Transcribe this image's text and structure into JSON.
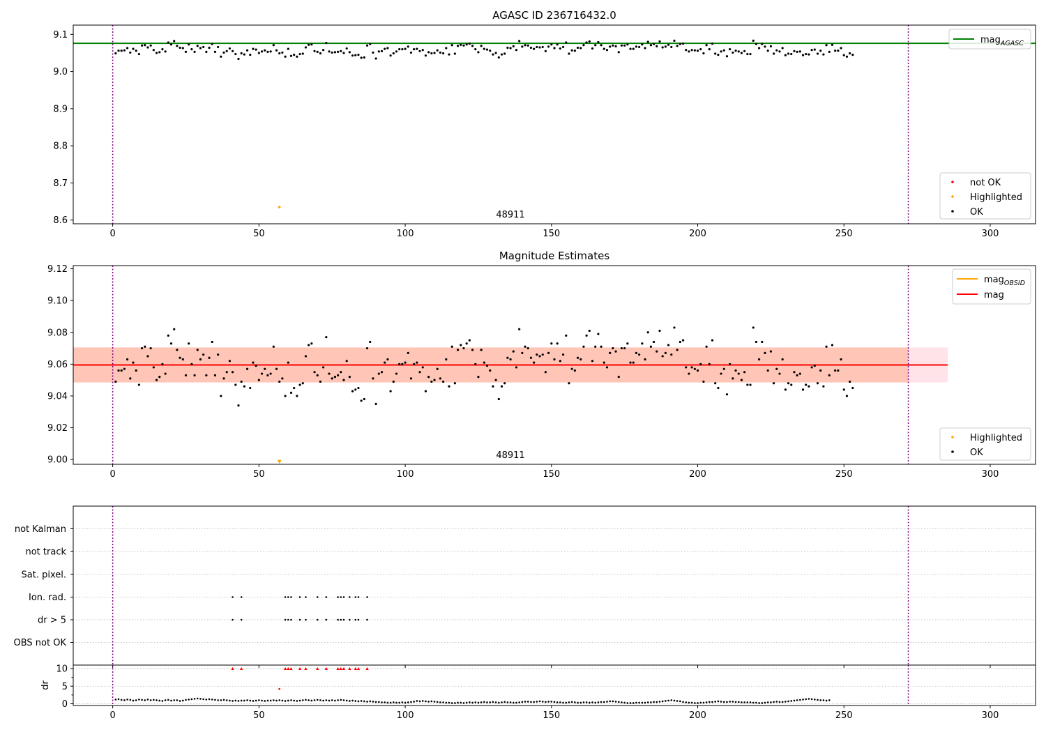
{
  "figure": {
    "vlines": [
      0,
      272
    ],
    "vline_color": "#800080",
    "colors": {
      "ok": "#000000",
      "highlighted": "#ffa500",
      "not_ok": "#ff0000",
      "agasc": "#008000",
      "mag": "#ff0000",
      "band_outer": "#ffc0cb",
      "band_inner": "#ffa07a"
    }
  },
  "chart_data": [
    {
      "id": "agasc-panel",
      "type": "scatter",
      "title": "AGASC ID 236716432.0",
      "xlim": [
        -13.5,
        315.5
      ],
      "ylim": [
        8.59,
        9.125
      ],
      "xticks": [
        "0",
        "50",
        "100",
        "150",
        "200",
        "250",
        "300"
      ],
      "yticks": [
        "8.6",
        "8.7",
        "8.8",
        "8.9",
        "9.0",
        "9.1"
      ],
      "hline": {
        "name": "mag_AGASC",
        "value": 9.076,
        "color": "#008000"
      },
      "annotation": {
        "text": "48911",
        "x": 136,
        "y": 8.608
      },
      "highlighted": [
        {
          "x": 57,
          "y": 8.635
        }
      ],
      "legend_lines": [
        {
          "label": "mag",
          "sub": "AGASC",
          "color": "#008000"
        }
      ],
      "legend_points": [
        {
          "label": "not OK",
          "color": "#ff0000"
        },
        {
          "label": "Highlighted",
          "color": "#ffa500"
        },
        {
          "label": "OK",
          "color": "#000000"
        }
      ],
      "ok_values": [
        9.049,
        9.056,
        9.056,
        9.057,
        9.063,
        9.051,
        9.061,
        9.056,
        9.047,
        9.07,
        9.071,
        9.065,
        9.07,
        9.058,
        9.05,
        9.052,
        9.06,
        9.054,
        9.078,
        9.073,
        9.082,
        9.069,
        9.064,
        9.063,
        9.053,
        9.073,
        9.06,
        9.053,
        9.069,
        9.063,
        9.066,
        9.053,
        9.064,
        9.074,
        9.053,
        9.066,
        9.04,
        9.051,
        9.055,
        9.062,
        9.055,
        9.047,
        9.034,
        9.049,
        9.046,
        9.057,
        9.045,
        9.061,
        9.059,
        9.05,
        9.054,
        9.057,
        9.053,
        9.054,
        9.071,
        9.057,
        9.049,
        9.051,
        9.04,
        9.061,
        9.042,
        9.045,
        9.04,
        9.047,
        9.048,
        9.065,
        9.072,
        9.073,
        9.055,
        9.053,
        9.049,
        9.058,
        9.077,
        9.054,
        9.051,
        9.052,
        9.053,
        9.055,
        9.05,
        9.062,
        9.052,
        9.043,
        9.044,
        9.045,
        9.037,
        9.038,
        9.07,
        9.074,
        9.051,
        9.035,
        9.054,
        9.055,
        9.061,
        9.063,
        9.043,
        9.049,
        9.054,
        9.06,
        9.06,
        9.061,
        9.067,
        9.051,
        9.06,
        9.061,
        9.055,
        9.058,
        9.043,
        9.052,
        9.049,
        9.05,
        9.057,
        9.051,
        9.049,
        9.063,
        9.046,
        9.071,
        9.048,
        9.069,
        9.072,
        9.07,
        9.073,
        9.075,
        9.069,
        9.06,
        9.052,
        9.069,
        9.061,
        9.059,
        9.056,
        9.046,
        9.05,
        9.038,
        9.046,
        9.048,
        9.064,
        9.063,
        9.068,
        9.058,
        9.082,
        9.067,
        9.071,
        9.07,
        9.064,
        9.061,
        9.066,
        9.065,
        9.066,
        9.055,
        9.067,
        9.073,
        9.063,
        9.073,
        9.062,
        9.066,
        9.078,
        9.048,
        9.057,
        9.056,
        9.064,
        9.063,
        9.071,
        9.078,
        9.081,
        9.062,
        9.071,
        9.079,
        9.071,
        9.061,
        9.058,
        9.067,
        9.07,
        9.068,
        9.052,
        9.07,
        9.07,
        9.073,
        9.061,
        9.061,
        9.067,
        9.066,
        9.073,
        9.063,
        9.08,
        9.071,
        9.074,
        9.068,
        9.081,
        9.065,
        9.067,
        9.072,
        9.066,
        9.083,
        9.069,
        9.074,
        9.075,
        9.058,
        9.054,
        9.058,
        9.057,
        9.056,
        9.06,
        9.049,
        9.071,
        9.06,
        9.075,
        9.048,
        9.045,
        9.054,
        9.057,
        9.041,
        9.06,
        9.051,
        9.056,
        9.054,
        9.05,
        9.055,
        9.047,
        9.047,
        9.083,
        9.074,
        9.063,
        9.074,
        9.067,
        9.056,
        9.068,
        9.048,
        9.057,
        9.054,
        9.063,
        9.044,
        9.048,
        9.047,
        9.055,
        9.053,
        9.054,
        9.044,
        9.047,
        9.046,
        9.058,
        9.059,
        9.048,
        9.056,
        9.046,
        9.071,
        9.053,
        9.072,
        9.056,
        9.056,
        9.063,
        9.044,
        9.04,
        9.049,
        9.045
      ]
    },
    {
      "id": "magnitude-panel",
      "type": "scatter",
      "title": "Magnitude Estimates",
      "xlim": [
        -13.5,
        315.5
      ],
      "ylim": [
        8.997,
        9.122
      ],
      "xticks": [
        "0",
        "50",
        "100",
        "150",
        "200",
        "250",
        "300"
      ],
      "yticks": [
        "9.00",
        "9.02",
        "9.04",
        "9.06",
        "9.08",
        "9.10",
        "9.12"
      ],
      "hline": {
        "name": "mag",
        "value": 9.0595,
        "x_end": 285.5,
        "color": "#ff0000"
      },
      "band_outer": {
        "low": 9.0485,
        "high": 9.0705,
        "color": "#ffc0cb"
      },
      "band_inner": {
        "low": 9.0485,
        "high": 9.0705,
        "x_end": 272,
        "color": "#ffa07a"
      },
      "annotation": {
        "text": "48911",
        "x": 136,
        "y": 9.0005
      },
      "highlighted_marker": {
        "x": 57,
        "y": 8.9985,
        "shape": "down-triangle"
      },
      "legend_lines": [
        {
          "label": "mag",
          "sub": "OBSID",
          "color": "#ffa500"
        },
        {
          "label": "mag",
          "sub": "",
          "color": "#ff0000"
        }
      ],
      "legend_points": [
        {
          "label": "Highlighted",
          "color": "#ffa500"
        },
        {
          "label": "OK",
          "color": "#000000"
        }
      ]
    },
    {
      "id": "flags-panel",
      "type": "scatter",
      "xlim": [
        -13.5,
        315.5
      ],
      "xticks": [
        "0",
        "50",
        "100",
        "150",
        "200",
        "250",
        "300"
      ],
      "categories": [
        "not Kalman",
        "not track",
        "Sat. pixel.",
        "Ion. rad.",
        "dr > 5",
        "OBS not OK"
      ],
      "ion_rad_x": [
        41,
        44,
        59,
        60,
        61,
        64,
        66,
        70,
        73,
        77,
        78,
        79,
        81,
        83,
        84,
        87
      ],
      "dr_gt5_x": [
        41,
        44,
        59,
        60,
        61,
        64,
        66,
        70,
        73,
        77,
        78,
        79,
        81,
        83,
        84,
        87
      ]
    },
    {
      "id": "dr-panel",
      "type": "scatter",
      "ylabel": "dr",
      "xlim": [
        -13.5,
        315.5
      ],
      "ylim": [
        -0.5,
        11
      ],
      "yticks": [
        "0",
        "5",
        "10"
      ],
      "xticks": [
        "0",
        "50",
        "100",
        "150",
        "200",
        "250",
        "300"
      ],
      "clipped_at": 10,
      "clipped_x": [
        41,
        44,
        59,
        60,
        61,
        64,
        66,
        70,
        73,
        77,
        78,
        79,
        81,
        83,
        84,
        87
      ],
      "highlighted_point": {
        "x": 57,
        "y": 4.2
      },
      "ok_values": [
        1.2,
        1.3,
        1.1,
        1.0,
        1.2,
        1.1,
        0.9,
        1.0,
        1.2,
        1.1,
        1.0,
        1.2,
        1.0,
        1.1,
        1.0,
        0.9,
        0.8,
        1.0,
        1.1,
        0.9,
        1.0,
        1.0,
        0.8,
        0.9,
        1.1,
        1.2,
        1.3,
        1.4,
        1.5,
        1.4,
        1.3,
        1.2,
        1.3,
        1.2,
        1.1,
        1.0,
        1.0,
        1.1,
        1.0,
        0.9,
        0.8,
        0.9,
        0.8,
        0.9,
        0.9,
        1.0,
        0.9,
        0.8,
        0.9,
        1.0,
        0.9,
        0.8,
        0.9,
        0.9,
        1.0,
        0.9,
        1.0,
        0.9,
        0.8,
        0.9,
        1.0,
        0.9,
        0.8,
        0.9,
        1.0,
        1.1,
        1.0,
        0.9,
        1.0,
        1.1,
        1.0,
        0.9,
        1.0,
        0.9,
        1.0,
        0.9,
        1.0,
        1.1,
        1.0,
        0.9,
        0.8,
        0.9,
        0.8,
        0.7,
        0.8,
        0.7,
        0.6,
        0.7,
        0.6,
        0.5,
        0.5,
        0.4,
        0.4,
        0.3,
        0.3,
        0.4,
        0.3,
        0.3,
        0.4,
        0.3,
        0.4,
        0.5,
        0.6,
        0.8,
        0.7,
        0.8,
        0.7,
        0.6,
        0.7,
        0.6,
        0.5,
        0.4,
        0.4,
        0.3,
        0.3,
        0.2,
        0.2,
        0.3,
        0.3,
        0.2,
        0.3,
        0.4,
        0.3,
        0.4,
        0.3,
        0.4,
        0.5,
        0.4,
        0.4,
        0.5,
        0.4,
        0.3,
        0.4,
        0.5,
        0.4,
        0.4,
        0.3,
        0.3,
        0.4,
        0.5,
        0.6,
        0.6,
        0.5,
        0.5,
        0.6,
        0.7,
        0.6,
        0.5,
        0.6,
        0.6,
        0.5,
        0.4,
        0.4,
        0.3,
        0.3,
        0.4,
        0.5,
        0.4,
        0.3,
        0.3,
        0.4,
        0.4,
        0.3,
        0.4,
        0.3,
        0.4,
        0.5,
        0.5,
        0.6,
        0.7,
        0.7,
        0.6,
        0.5,
        0.4,
        0.3,
        0.2,
        0.2,
        0.2,
        0.3,
        0.3,
        0.3,
        0.3,
        0.4,
        0.4,
        0.5,
        0.5,
        0.6,
        0.7,
        0.8,
        0.9,
        1.0,
        0.9,
        0.8,
        0.7,
        0.5,
        0.4,
        0.3,
        0.3,
        0.2,
        0.2,
        0.3,
        0.3,
        0.4,
        0.5,
        0.5,
        0.6,
        0.7,
        0.6,
        0.5,
        0.5,
        0.6,
        0.6,
        0.5,
        0.5,
        0.4,
        0.4,
        0.4,
        0.4,
        0.3,
        0.3,
        0.2,
        0.2,
        0.3,
        0.4,
        0.4,
        0.5,
        0.6,
        0.5,
        0.5,
        0.6,
        0.7,
        0.8,
        0.9,
        1.0,
        1.1,
        1.2,
        1.3,
        1.4,
        1.3,
        1.2,
        1.1,
        1.0,
        1.0,
        0.9,
        1.0
      ]
    }
  ]
}
